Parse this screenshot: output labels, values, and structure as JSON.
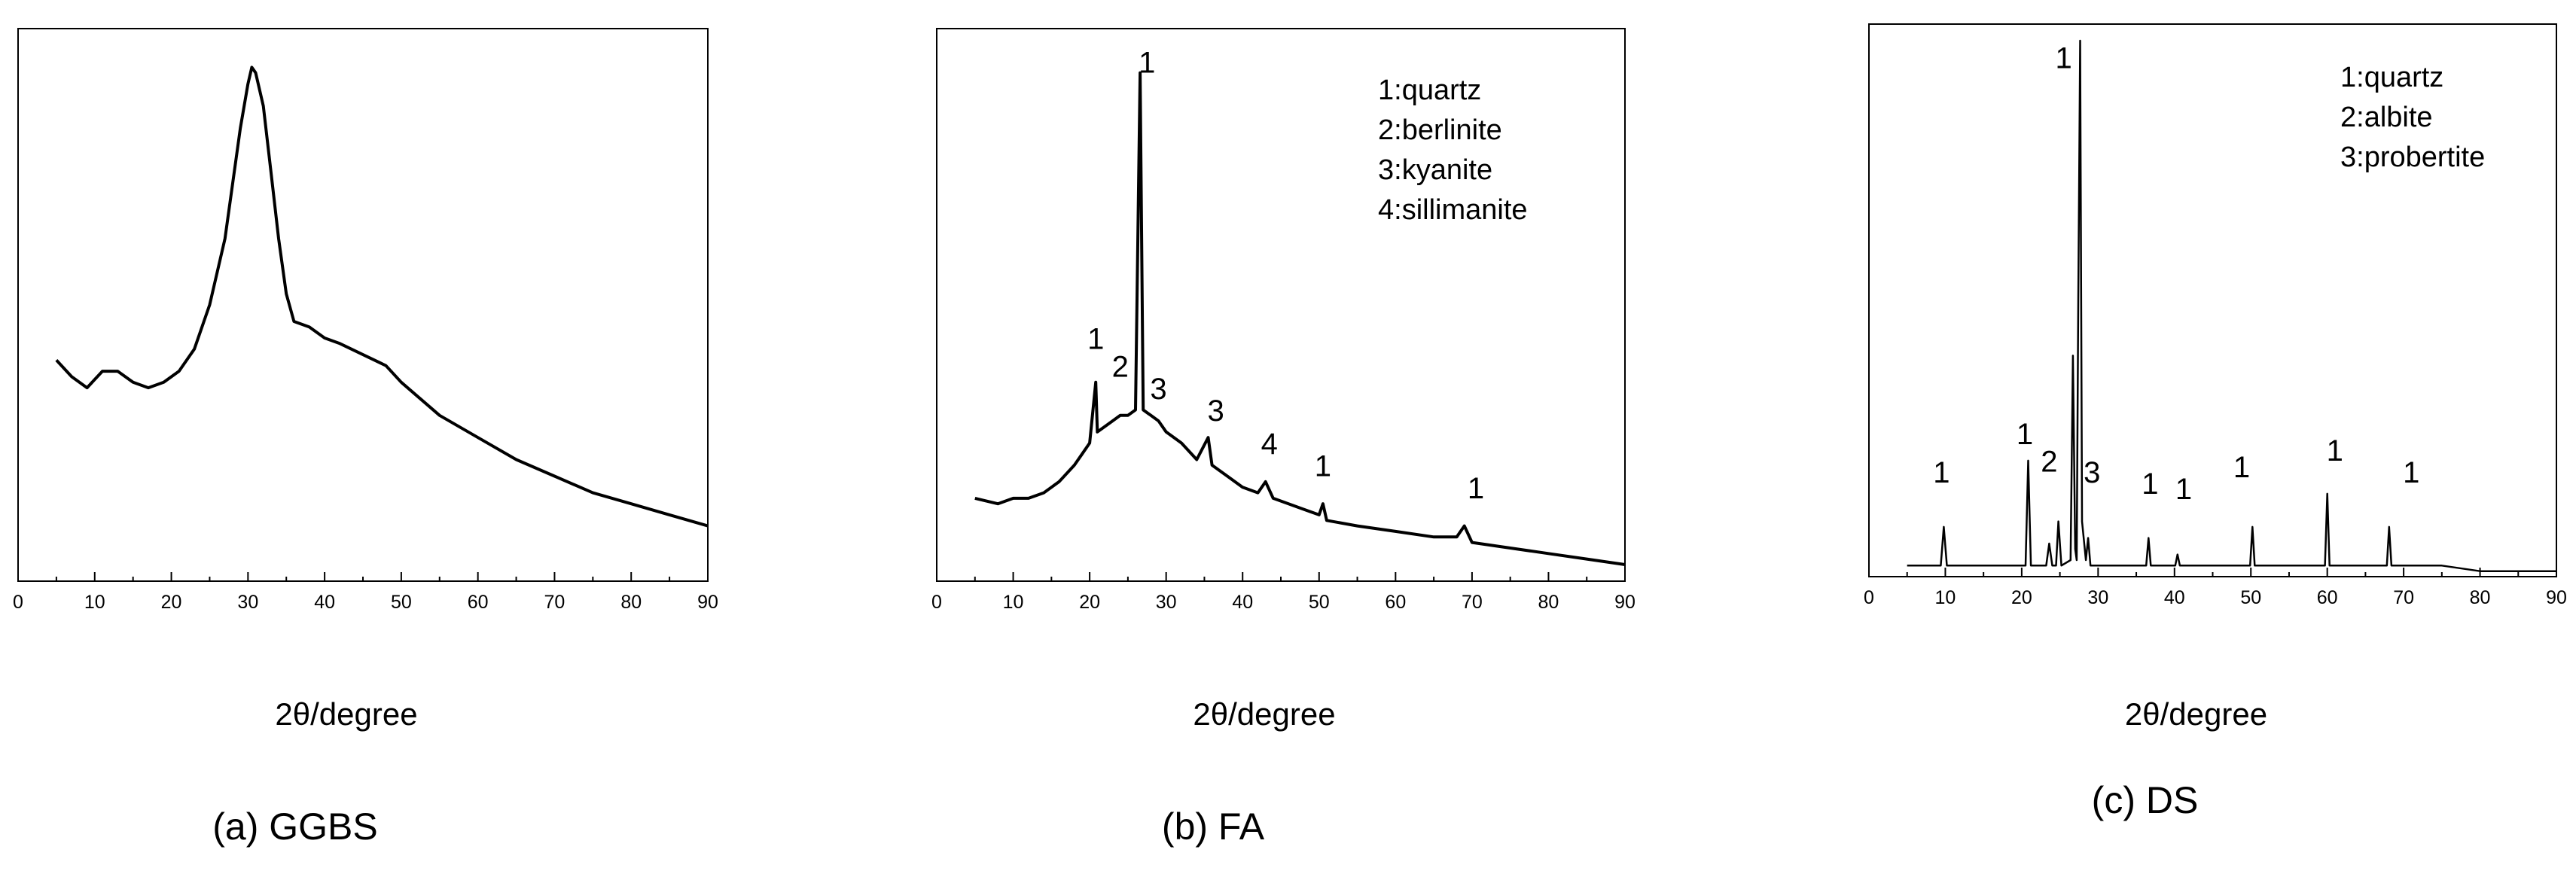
{
  "chart_data": [
    {
      "type": "line",
      "caption": "(a) GGBS",
      "xlabel": "2θ/degree",
      "ylabel": "",
      "xlim": [
        0,
        90
      ],
      "x_ticks": [
        "0",
        "10",
        "20",
        "30",
        "40",
        "50",
        "60",
        "70",
        "80",
        "90"
      ],
      "y_ticks": "none",
      "grid": false,
      "legend": [],
      "peak_labels": [],
      "series": [
        {
          "x": [
            5,
            7,
            9,
            11,
            13,
            15,
            17,
            19,
            21,
            23,
            25,
            27,
            28,
            29,
            30,
            30.5,
            31,
            32,
            33,
            34,
            35,
            36,
            38,
            40,
            42,
            45,
            48,
            50,
            55,
            60,
            65,
            70,
            75,
            80,
            85,
            90
          ],
          "y": [
            0.4,
            0.37,
            0.35,
            0.38,
            0.38,
            0.36,
            0.35,
            0.36,
            0.38,
            0.42,
            0.5,
            0.62,
            0.72,
            0.82,
            0.9,
            0.93,
            0.92,
            0.86,
            0.74,
            0.62,
            0.52,
            0.47,
            0.46,
            0.44,
            0.43,
            0.41,
            0.39,
            0.36,
            0.3,
            0.26,
            0.22,
            0.19,
            0.16,
            0.14,
            0.12,
            0.1
          ]
        }
      ]
    },
    {
      "type": "line",
      "caption": "(b) FA",
      "xlabel": "2θ/degree",
      "ylabel": "",
      "xlim": [
        0,
        90
      ],
      "x_ticks": [
        "0",
        "10",
        "20",
        "30",
        "40",
        "50",
        "60",
        "70",
        "80",
        "90"
      ],
      "y_ticks": "none",
      "grid": false,
      "legend": [
        "1:quartz",
        "2:berlinite",
        "3:kyanite",
        "4:sillimanite"
      ],
      "peak_labels": [
        {
          "label": "1",
          "x": 20.8,
          "y": 0.42
        },
        {
          "label": "2",
          "x": 24.0,
          "y": 0.37
        },
        {
          "label": "1",
          "x": 27.5,
          "y": 0.92
        },
        {
          "label": "3",
          "x": 29.0,
          "y": 0.33
        },
        {
          "label": "3",
          "x": 36.5,
          "y": 0.29
        },
        {
          "label": "4",
          "x": 43.5,
          "y": 0.23
        },
        {
          "label": "1",
          "x": 50.5,
          "y": 0.19
        },
        {
          "label": "1",
          "x": 70.5,
          "y": 0.15
        }
      ],
      "series": [
        {
          "x": [
            5,
            8,
            10,
            12,
            14,
            16,
            18,
            19,
            20,
            20.8,
            21,
            22,
            23,
            24,
            25,
            26,
            26.6,
            27,
            28,
            29,
            30,
            32,
            34,
            35.5,
            36,
            38,
            40,
            42,
            43,
            44,
            46,
            48,
            50,
            50.5,
            51,
            55,
            60,
            65,
            68,
            69,
            70,
            75,
            80,
            85,
            90
          ],
          "y": [
            0.15,
            0.14,
            0.15,
            0.15,
            0.16,
            0.18,
            0.21,
            0.23,
            0.25,
            0.36,
            0.27,
            0.28,
            0.29,
            0.3,
            0.3,
            0.31,
            0.92,
            0.31,
            0.3,
            0.29,
            0.27,
            0.25,
            0.22,
            0.26,
            0.21,
            0.19,
            0.17,
            0.16,
            0.18,
            0.15,
            0.14,
            0.13,
            0.12,
            0.14,
            0.11,
            0.1,
            0.09,
            0.08,
            0.08,
            0.1,
            0.07,
            0.06,
            0.05,
            0.04,
            0.03
          ]
        }
      ]
    },
    {
      "type": "line",
      "caption": "(c) DS",
      "xlabel": "2θ/degree",
      "ylabel": "",
      "xlim": [
        0,
        90
      ],
      "x_ticks": [
        "0",
        "10",
        "20",
        "30",
        "40",
        "50",
        "60",
        "70",
        "80",
        "90"
      ],
      "y_ticks": "none",
      "grid": false,
      "legend": [
        "1:quartz",
        "2:albite",
        "3:probertite"
      ],
      "peak_labels": [
        {
          "label": "1",
          "x": 9.5,
          "y": 0.17
        },
        {
          "label": "1",
          "x": 20.4,
          "y": 0.24
        },
        {
          "label": "2",
          "x": 23.6,
          "y": 0.19
        },
        {
          "label": "1",
          "x": 25.5,
          "y": 0.92
        },
        {
          "label": "3",
          "x": 29.2,
          "y": 0.17
        },
        {
          "label": "1",
          "x": 36.8,
          "y": 0.15
        },
        {
          "label": "1",
          "x": 41.2,
          "y": 0.14
        },
        {
          "label": "1",
          "x": 48.8,
          "y": 0.18
        },
        {
          "label": "1",
          "x": 61.0,
          "y": 0.21
        },
        {
          "label": "1",
          "x": 71.0,
          "y": 0.17
        }
      ],
      "series": [
        {
          "x": [
            5,
            9.4,
            9.8,
            10.2,
            15,
            20.5,
            20.85,
            21.2,
            23.2,
            23.6,
            24.0,
            24.5,
            24.8,
            25.2,
            26.4,
            26.7,
            27.0,
            27.2,
            27.4,
            27.65,
            27.9,
            28.4,
            28.7,
            29.0,
            35,
            36.3,
            36.6,
            36.9,
            40.1,
            40.4,
            40.7,
            45,
            49.9,
            50.2,
            50.5,
            55,
            59.7,
            60.0,
            60.3,
            67.8,
            68.1,
            68.4,
            75,
            80,
            85,
            90
          ],
          "y": [
            0.02,
            0.02,
            0.09,
            0.02,
            0.02,
            0.02,
            0.21,
            0.02,
            0.02,
            0.06,
            0.02,
            0.02,
            0.1,
            0.02,
            0.03,
            0.4,
            0.05,
            0.03,
            0.5,
            0.97,
            0.1,
            0.03,
            0.07,
            0.02,
            0.02,
            0.02,
            0.07,
            0.02,
            0.02,
            0.04,
            0.02,
            0.02,
            0.02,
            0.09,
            0.02,
            0.02,
            0.02,
            0.15,
            0.02,
            0.02,
            0.09,
            0.02,
            0.02,
            0.01,
            0.01,
            0.01
          ]
        }
      ]
    }
  ]
}
